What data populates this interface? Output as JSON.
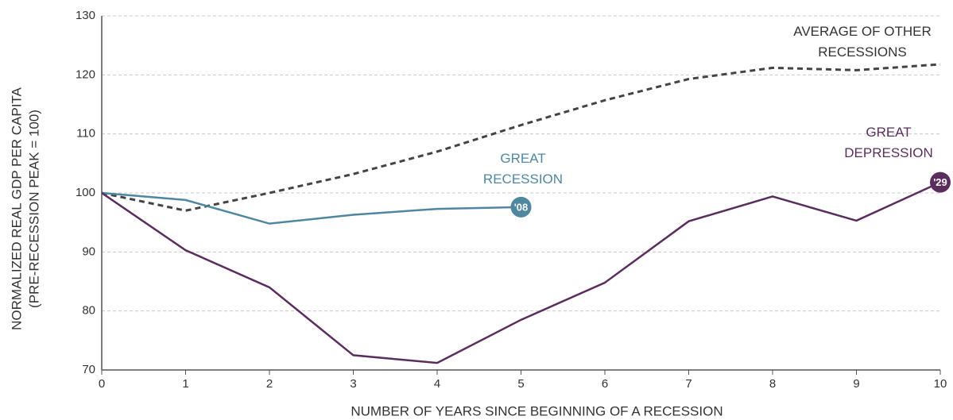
{
  "chart_data": {
    "type": "line",
    "xlabel": "NUMBER OF YEARS SINCE BEGINNING OF A RECESSION",
    "ylabel": [
      "NORMALIZED REAL GDP PER CAPITA",
      "(PRE-RECESSION PEAK = 100)"
    ],
    "x": [
      0,
      1,
      2,
      3,
      4,
      5,
      6,
      7,
      8,
      9,
      10
    ],
    "xlim": [
      0,
      10
    ],
    "xticks": [
      0,
      1,
      2,
      3,
      4,
      5,
      6,
      7,
      8,
      9,
      10
    ],
    "ylim": [
      70,
      130
    ],
    "yticks": [
      70,
      80,
      90,
      100,
      110,
      120,
      130
    ],
    "grid": true,
    "series": [
      {
        "name": "AVERAGE OF OTHER RECESSIONS",
        "color": "#444444",
        "dashed": true,
        "values": [
          100,
          97,
          100,
          103.2,
          107,
          111.5,
          115.7,
          119.3,
          121.2,
          120.8,
          121.8
        ]
      },
      {
        "name": "GREAT RECESSION",
        "color": "#4f87a1",
        "badge": "'08",
        "values": [
          100,
          98.8,
          94.8,
          96.3,
          97.3,
          97.6,
          null,
          null,
          null,
          null,
          null
        ]
      },
      {
        "name": "GREAT DEPRESSION",
        "color": "#5a2d5e",
        "badge": "'29",
        "values": [
          100,
          90.3,
          84,
          72.5,
          71.2,
          78.5,
          84.8,
          95.2,
          99.4,
          95.3,
          101.8
        ]
      }
    ]
  }
}
